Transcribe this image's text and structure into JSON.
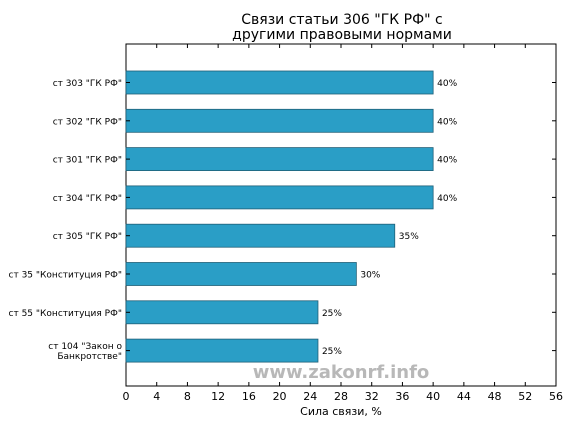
{
  "chart_data": {
    "type": "bar",
    "orientation": "horizontal",
    "title_lines": [
      "Связи статьи 306 \"ГК РФ\" с",
      "другими правовыми нормами"
    ],
    "categories": [
      [
        "ст 303 \"ГК РФ\""
      ],
      [
        "ст 302 \"ГК РФ\""
      ],
      [
        "ст 301 \"ГК РФ\""
      ],
      [
        "ст 304 \"ГК РФ\""
      ],
      [
        "ст 305 \"ГК РФ\""
      ],
      [
        "ст 35 \"Конституция РФ\""
      ],
      [
        "ст 55 \"Конституция РФ\""
      ],
      [
        "ст 104 \"Закон о",
        "Банкротстве\""
      ]
    ],
    "values": [
      40,
      40,
      40,
      40,
      35,
      30,
      25,
      25
    ],
    "data_labels": [
      "40%",
      "40%",
      "40%",
      "40%",
      "35%",
      "30%",
      "25%",
      "25%"
    ],
    "xlabel": "Сила связи, %",
    "xlim": [
      0,
      56
    ],
    "xticks": [
      0,
      4,
      8,
      12,
      16,
      20,
      24,
      28,
      32,
      36,
      40,
      44,
      48,
      52,
      56
    ],
    "grid": false,
    "bar_color": "#2a9ec6",
    "bar_edge_color": "#1f5f77",
    "watermark": "www.zakonrf.info"
  }
}
